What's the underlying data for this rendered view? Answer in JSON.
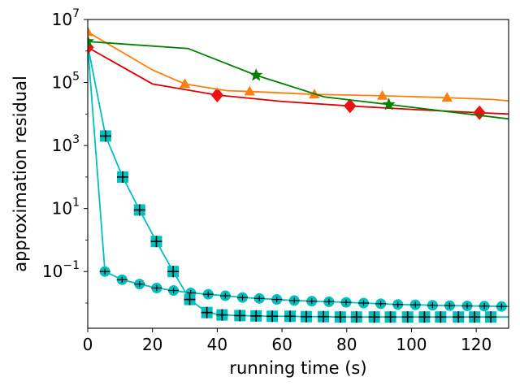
{
  "chart_data": {
    "type": "line",
    "xlabel": "running time (s)",
    "ylabel": "approximation residual",
    "xlim": [
      0,
      130
    ],
    "ylim_log10": [
      -2.8,
      7
    ],
    "y_scale": "log",
    "x_ticks": [
      0,
      20,
      40,
      60,
      80,
      100,
      120
    ],
    "x_tick_labels": [
      "0",
      "20",
      "40",
      "60",
      "80",
      "100",
      "120"
    ],
    "y_ticks_log10": [
      -1,
      1,
      3,
      5,
      7
    ],
    "y_tick_labels": [
      {
        "base": "10",
        "exp": "−1"
      },
      {
        "base": "10",
        "exp": "1"
      },
      {
        "base": "10",
        "exp": "3"
      },
      {
        "base": "10",
        "exp": "5"
      },
      {
        "base": "10",
        "exp": "7"
      }
    ],
    "series": [
      {
        "name": "green-star",
        "color": "#008000",
        "marker": "star",
        "x": [
          0,
          31,
          52,
          73,
          93,
          130
        ],
        "y": [
          2000000,
          1200000,
          170000,
          35000,
          20000,
          7000
        ],
        "marker_x": [
          0,
          52,
          93
        ],
        "marker_y": [
          2000000,
          170000,
          20000
        ]
      },
      {
        "name": "orange-triangle",
        "color": "#ff7f0e",
        "marker": "triangle",
        "x": [
          0,
          20,
          30,
          43,
          50,
          70,
          91,
          111,
          125,
          130
        ],
        "y": [
          4000000,
          250000,
          90000,
          55000,
          52000,
          42000,
          38000,
          33000,
          29000,
          26000
        ],
        "marker_x": [
          0,
          30,
          50,
          70,
          91,
          111
        ],
        "marker_y": [
          4000000,
          90000,
          52000,
          42000,
          38000,
          33000
        ],
        "marker_size": "small"
      },
      {
        "name": "red-diamond",
        "color": "#ee1111",
        "line_color": "#dd0000",
        "marker": "diamond",
        "x": [
          0,
          20,
          40,
          60,
          81,
          100,
          121,
          130
        ],
        "y": [
          1300000,
          90000,
          40000,
          25000,
          18000,
          14000,
          11000,
          10000
        ],
        "marker_x": [
          0,
          40,
          81,
          121
        ],
        "marker_y": [
          1300000,
          40000,
          18000,
          11000
        ]
      },
      {
        "name": "cyan-square",
        "color": "#00bfbf",
        "marker": "square",
        "x": [
          0,
          5.5,
          10.8,
          16,
          21.2,
          26.4,
          31.5,
          36.8,
          41.5,
          47,
          52,
          57,
          62.5,
          67.5,
          72.8,
          78,
          83,
          88.5,
          93.5,
          98.8,
          104,
          109,
          114.5,
          119.5,
          124.5,
          130
        ],
        "y": [
          1500000,
          2000,
          100,
          9,
          0.9,
          0.1,
          0.013,
          0.005,
          0.0042,
          0.004,
          0.0039,
          0.0038,
          0.0038,
          0.0037,
          0.0037,
          0.0036,
          0.0036,
          0.0036,
          0.0036,
          0.0036,
          0.0036,
          0.0036,
          0.0036,
          0.0036,
          0.0036,
          0.0036
        ]
      },
      {
        "name": "cyan-circle",
        "color": "#00bfbf",
        "marker": "circle",
        "x": [
          0,
          5.3,
          10.6,
          16,
          21.3,
          26.5,
          31.8,
          37.2,
          42.5,
          47.8,
          53,
          58.4,
          63.8,
          69.2,
          74.5,
          79.8,
          85.2,
          90.5,
          95.8,
          101.2,
          106.5,
          111.8,
          117.2,
          122.5,
          127.8,
          130
        ],
        "y": [
          1500000,
          0.1,
          0.055,
          0.04,
          0.03,
          0.025,
          0.021,
          0.019,
          0.017,
          0.015,
          0.014,
          0.013,
          0.012,
          0.0115,
          0.011,
          0.0105,
          0.01,
          0.0095,
          0.009,
          0.0088,
          0.0085,
          0.0083,
          0.0081,
          0.008,
          0.0078,
          0.0078
        ]
      }
    ]
  }
}
